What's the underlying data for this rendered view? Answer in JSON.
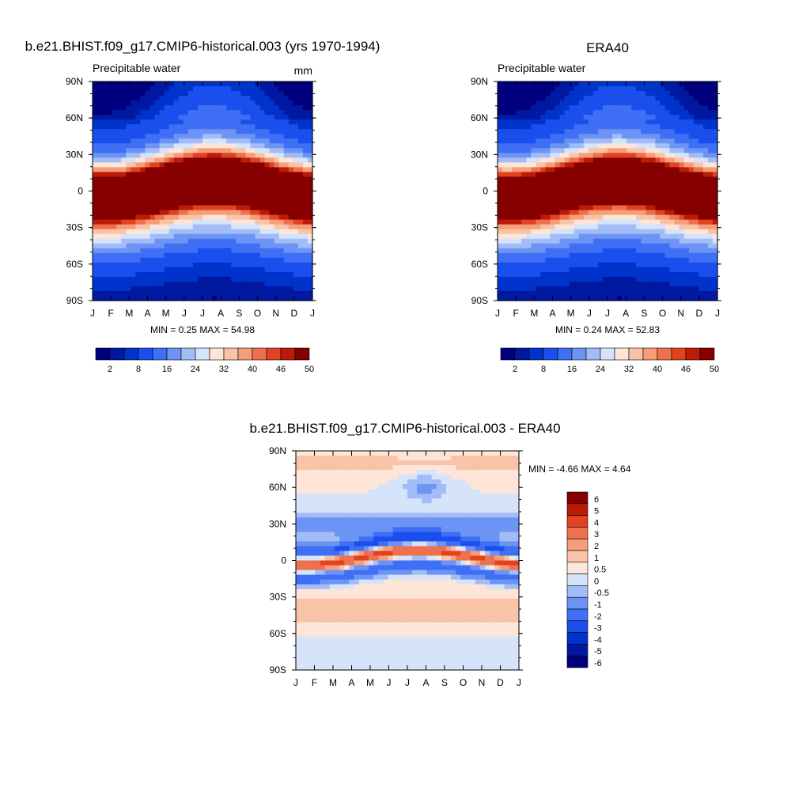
{
  "colors": {
    "abs_scale": [
      "#00007f",
      "#0019a0",
      "#0033cc",
      "#1a4fee",
      "#3e6ff5",
      "#6d94f4",
      "#a2bcf7",
      "#d5e4fb",
      "#fde5d7",
      "#f9c3a7",
      "#f59e79",
      "#ef704d",
      "#e1421f",
      "#bc1b08",
      "#860000"
    ],
    "diff_scale": [
      "#00007f",
      "#0019a0",
      "#0033cc",
      "#1a4fee",
      "#3e6ff5",
      "#6d94f4",
      "#a2bcf7",
      "#d5e4fb",
      "#fde5d7",
      "#f9c3a7",
      "#f59e79",
      "#ef704d",
      "#e1421f",
      "#bc1b08",
      "#860000"
    ]
  },
  "chart_data": [
    {
      "type": "heatmap",
      "title": "b.e21.BHIST.f09_g17.CMIP6-historical.003 (yrs 1970-1994)",
      "left_label": "Precipitable water",
      "units": "mm",
      "x_ticks": [
        "J",
        "F",
        "M",
        "A",
        "M",
        "J",
        "J",
        "A",
        "S",
        "O",
        "N",
        "D",
        "J"
      ],
      "y_ticks": [
        "90N",
        "60N",
        "30N",
        "0",
        "30S",
        "60S",
        "90S"
      ],
      "stats": "MIN =   0.25 MAX =   54.98",
      "min": 0.25,
      "max": 54.98,
      "colorbar_labels": [
        "2",
        "8",
        "16",
        "24",
        "32",
        "40",
        "46",
        "50"
      ]
    },
    {
      "type": "heatmap",
      "title": "ERA40",
      "left_label": "Precipitable water",
      "units": "",
      "x_ticks": [
        "J",
        "F",
        "M",
        "A",
        "M",
        "J",
        "J",
        "A",
        "S",
        "O",
        "N",
        "D",
        "J"
      ],
      "y_ticks": [
        "90N",
        "60N",
        "30N",
        "0",
        "30S",
        "60S",
        "90S"
      ],
      "stats": "MIN =   0.24 MAX =   52.83",
      "min": 0.24,
      "max": 52.83,
      "colorbar_labels": [
        "2",
        "8",
        "16",
        "24",
        "32",
        "40",
        "46",
        "50"
      ]
    },
    {
      "type": "heatmap",
      "title": "b.e21.BHIST.f09_g17.CMIP6-historical.003 - ERA40",
      "x_ticks": [
        "J",
        "F",
        "M",
        "A",
        "M",
        "J",
        "J",
        "A",
        "S",
        "O",
        "N",
        "D",
        "J"
      ],
      "y_ticks": [
        "90N",
        "60N",
        "30N",
        "0",
        "30S",
        "60S",
        "90S"
      ],
      "stats": "MIN =  -4.66 MAX =   4.64",
      "min": -4.66,
      "max": 4.64,
      "colorbar_labels": [
        "6",
        "5",
        "4",
        "3",
        "2",
        "1",
        "0.5",
        "0",
        "-0.5",
        "-1",
        "-2",
        "-3",
        "-4",
        "-5",
        "-6"
      ]
    }
  ]
}
